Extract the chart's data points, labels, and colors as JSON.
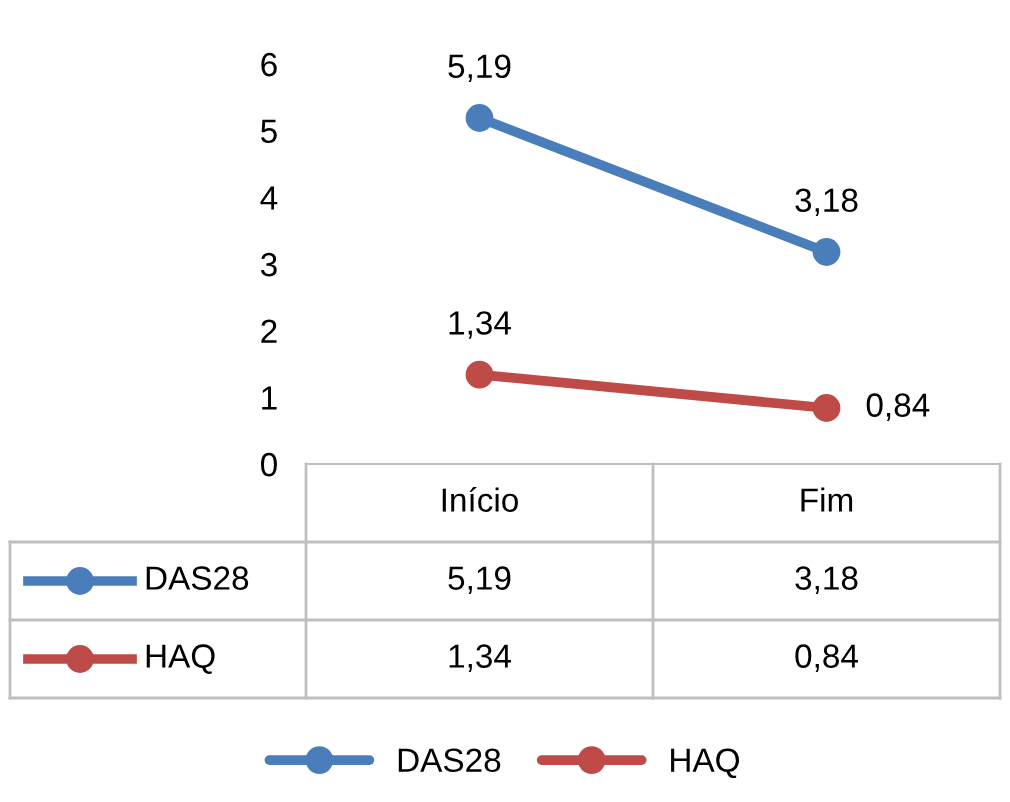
{
  "chart_data": {
    "type": "line",
    "categories": [
      "Início",
      "Fim"
    ],
    "series": [
      {
        "name": "DAS28",
        "color": "#4a7ebb",
        "values": [
          5.19,
          3.18
        ],
        "value_labels": [
          "5,19",
          "3,18"
        ]
      },
      {
        "name": "HAQ",
        "color": "#be4b48",
        "values": [
          1.34,
          0.84
        ],
        "value_labels": [
          "1,34",
          "0,84"
        ]
      }
    ],
    "ylim": [
      0,
      6
    ],
    "yticks": [
      0,
      1,
      2,
      3,
      4,
      5,
      6
    ],
    "marker": "circle",
    "line_style": "solid",
    "grid": false,
    "legend": "bottom"
  }
}
